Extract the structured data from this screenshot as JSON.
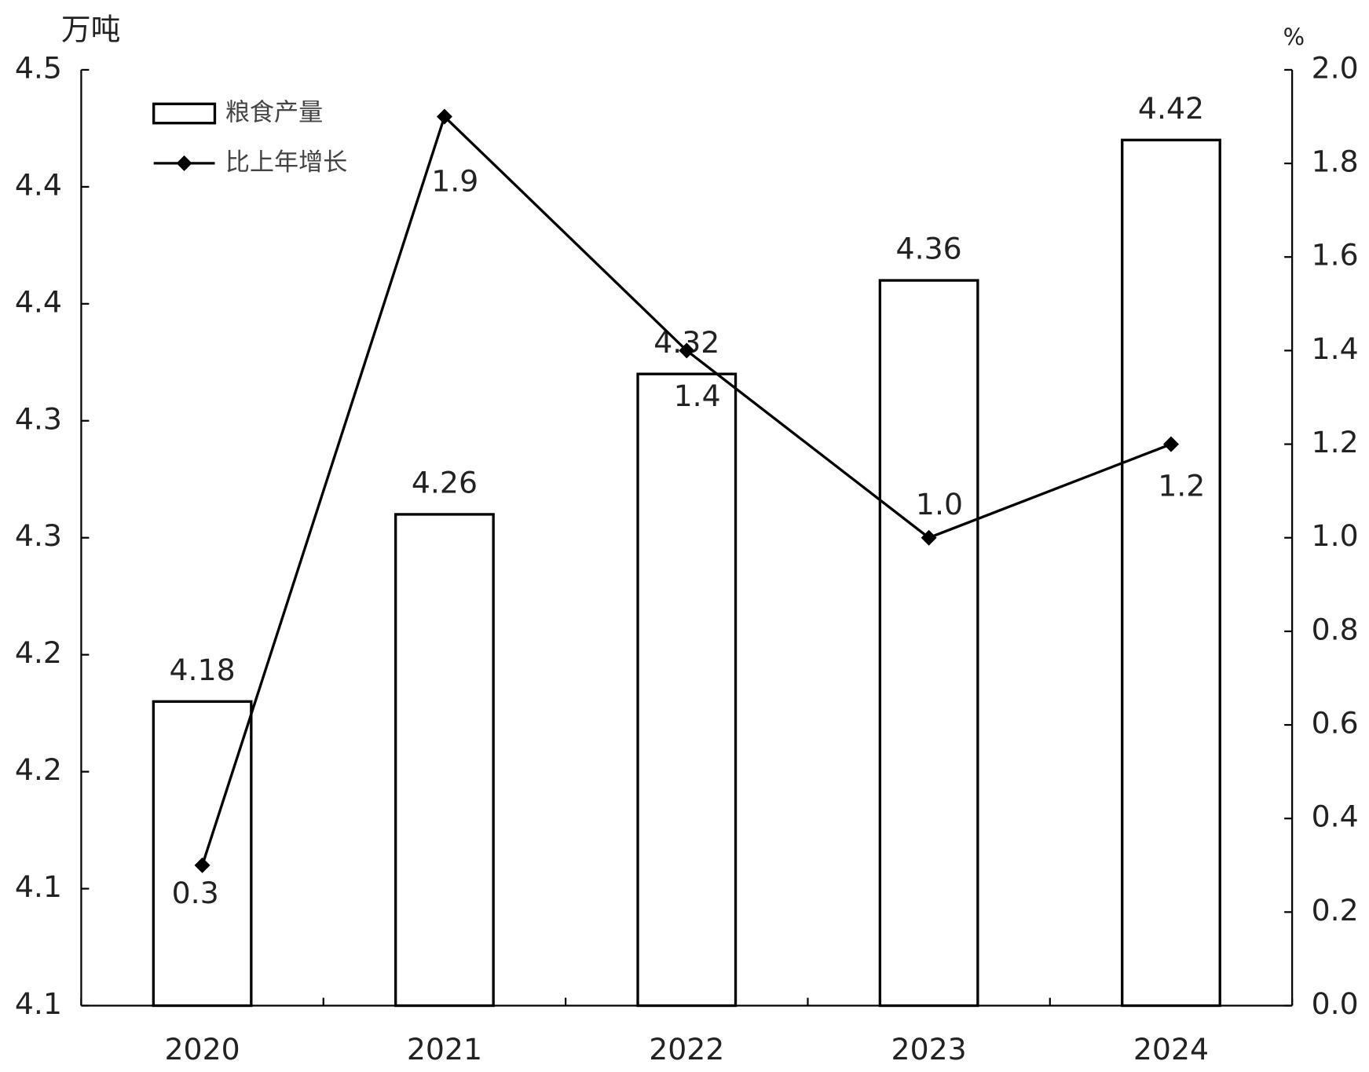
{
  "chart_data": {
    "type": "bar",
    "y_unit": "万吨",
    "y2_unit": "%",
    "categories": [
      "2020",
      "2021",
      "2022",
      "2023",
      "2024"
    ],
    "series": [
      {
        "name": "粮食产量",
        "type": "bar",
        "color": "#ffffff",
        "values": [
          4.18,
          4.26,
          4.32,
          4.36,
          4.42
        ]
      },
      {
        "name": "比上年增长",
        "type": "line",
        "axis": "y2",
        "color": "#000000",
        "values": [
          0.3,
          1.9,
          1.4,
          1.0,
          1.2
        ],
        "value_labels": [
          "0.3",
          "1.9",
          "1.4",
          "1.0",
          "1.2"
        ]
      }
    ],
    "ylim": [
      4.05,
      4.45
    ],
    "yticks": [
      {
        "value": 4.05,
        "label": "4.1"
      },
      {
        "value": 4.1,
        "label": "4.1"
      },
      {
        "value": 4.15,
        "label": "4.2"
      },
      {
        "value": 4.2,
        "label": "4.2"
      },
      {
        "value": 4.25,
        "label": "4.3"
      },
      {
        "value": 4.3,
        "label": "4.3"
      },
      {
        "value": 4.35,
        "label": "4.4"
      },
      {
        "value": 4.4,
        "label": "4.4"
      },
      {
        "value": 4.45,
        "label": "4.5"
      }
    ],
    "y2lim": [
      0,
      2
    ],
    "y2ticks": [
      {
        "value": 0,
        "label": "0.0"
      },
      0.2,
      0.4,
      0.6,
      0.8,
      {
        "value": 1,
        "label": "1.0"
      },
      1.2,
      1.4,
      1.6,
      1.8,
      {
        "value": 2,
        "label": "2.0"
      }
    ],
    "grid": false,
    "legend": "upper left"
  }
}
